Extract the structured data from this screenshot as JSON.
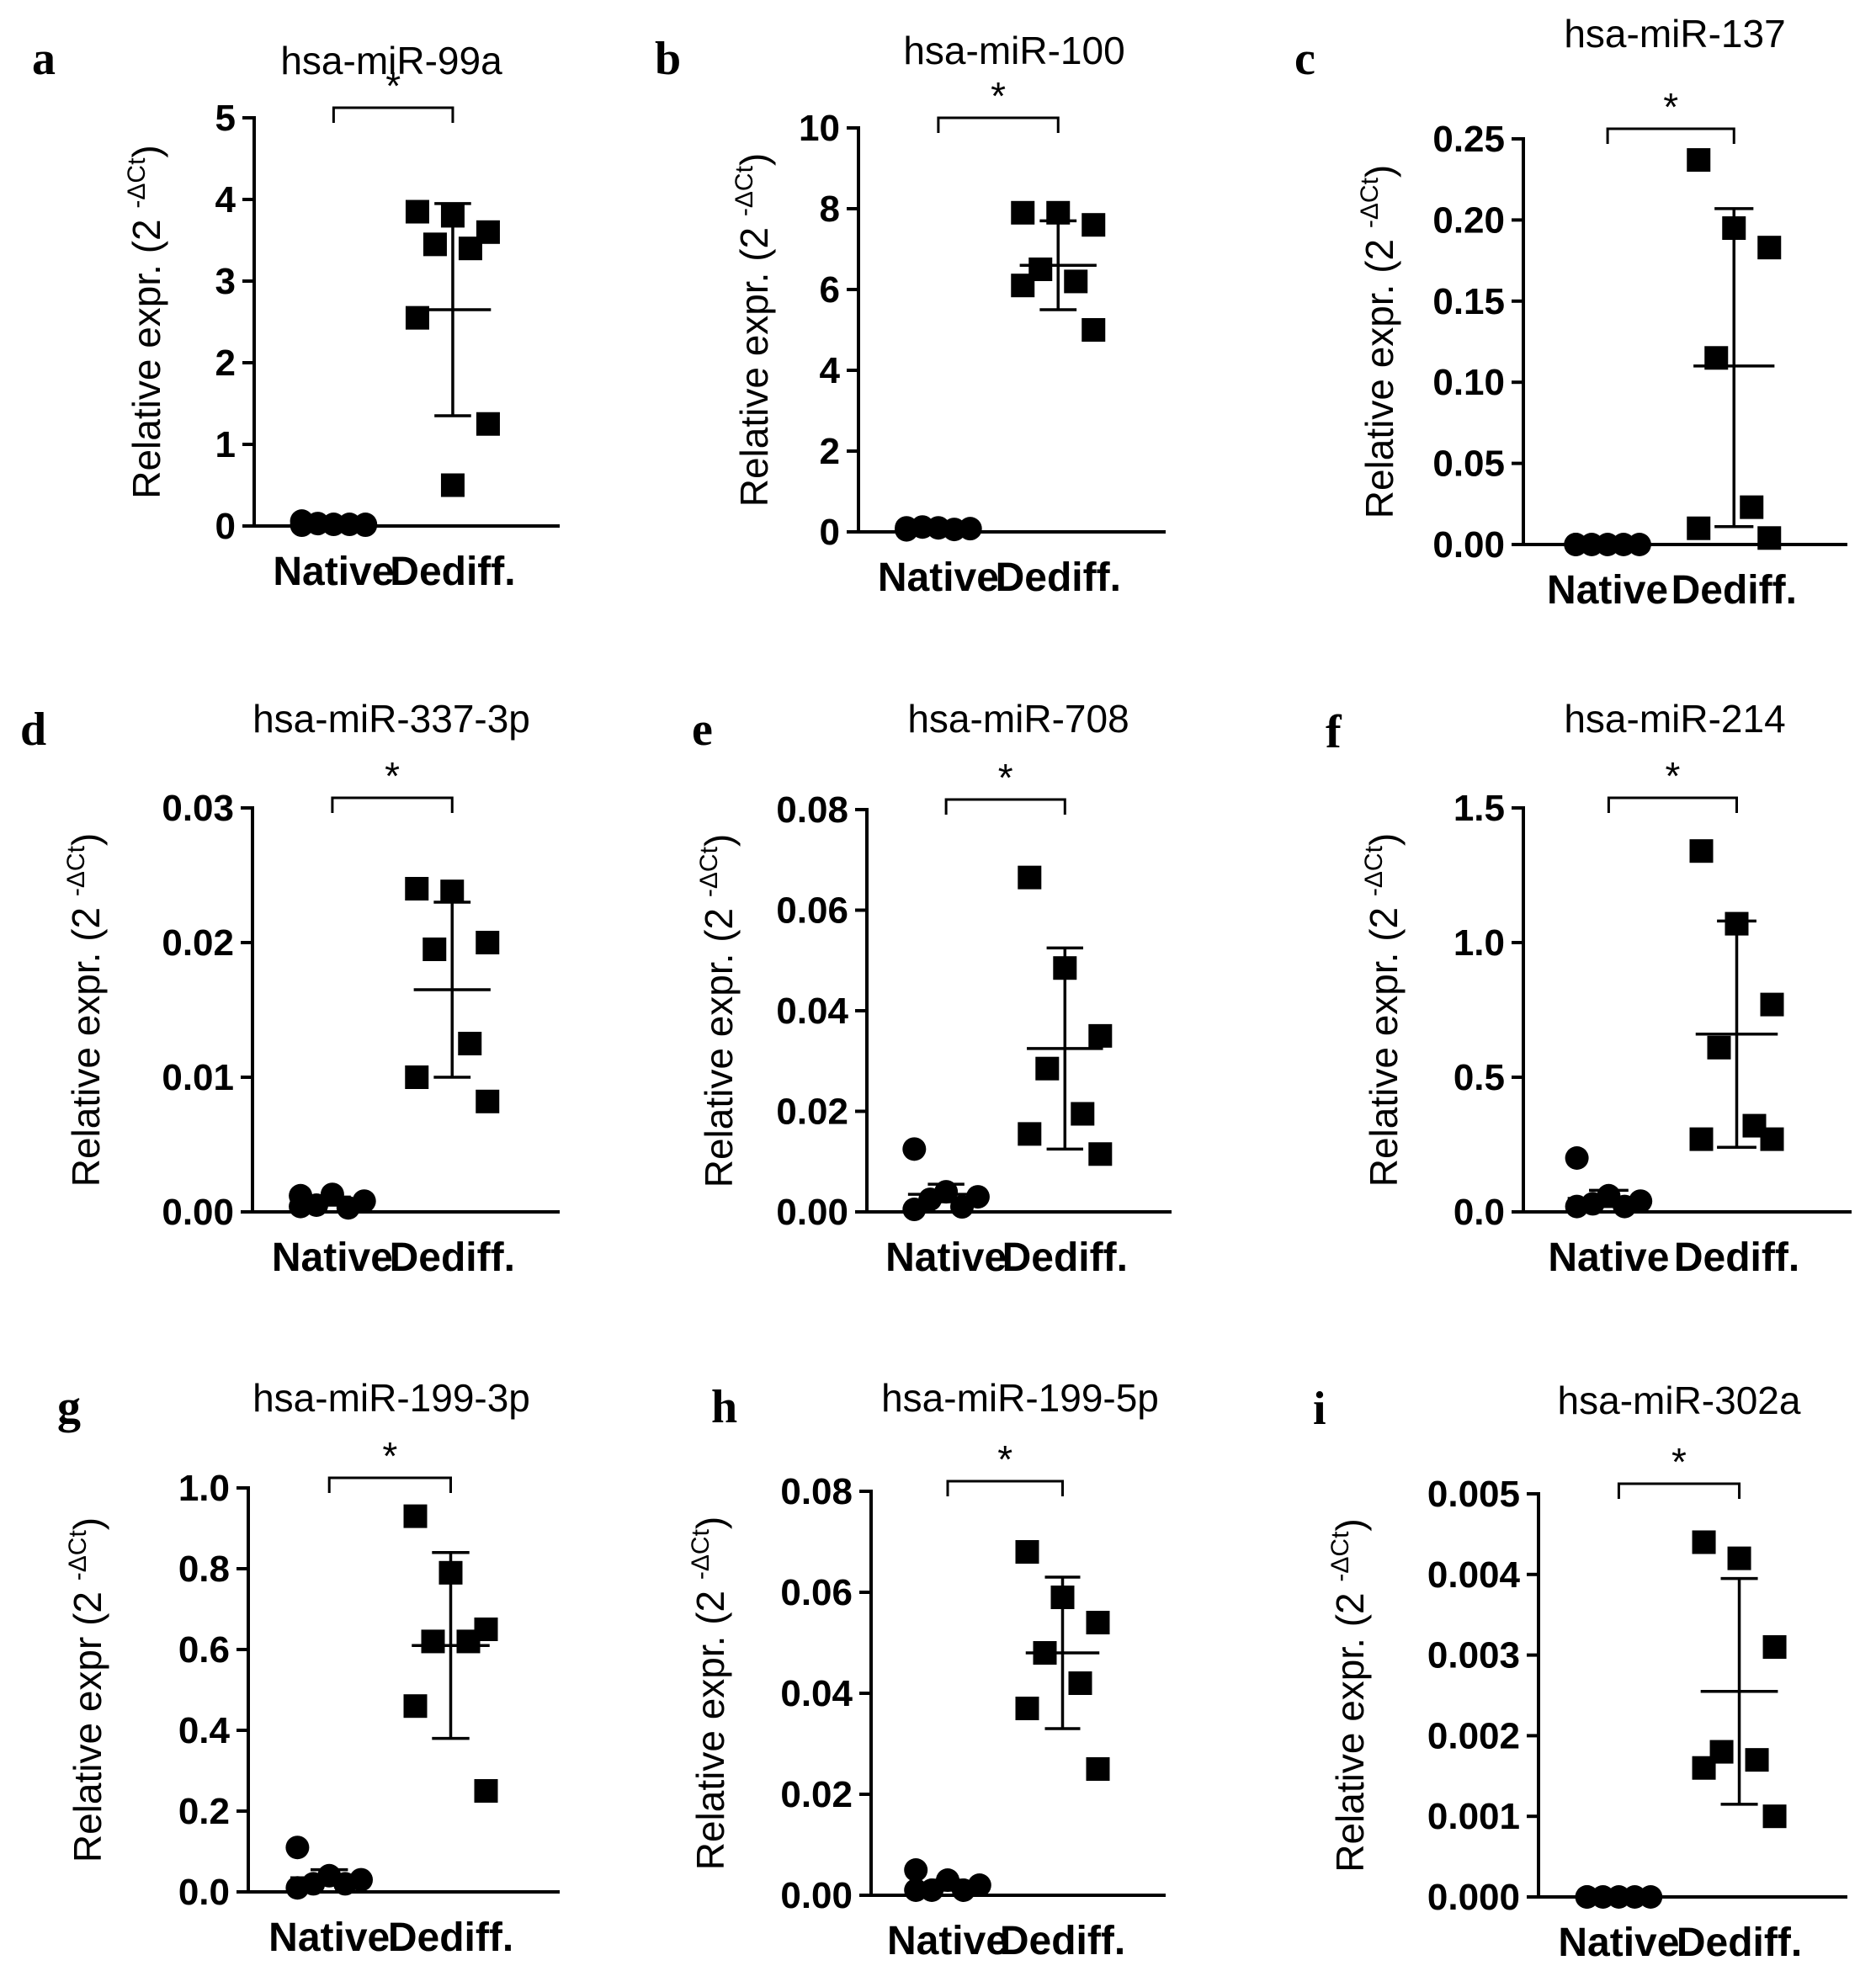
{
  "chart_data": [
    {
      "panel": "a",
      "type": "scatter",
      "title": "hsa-miR-99a",
      "ylabel": "Relative expr. (2",
      "ylabel_sup": "-ΔCt",
      "ylabel_close": ")",
      "ylim": [
        0,
        5
      ],
      "yticks": [
        0,
        1,
        2,
        3,
        4,
        5
      ],
      "ytick_labels": [
        "0",
        "1",
        "2",
        "3",
        "4",
        "5"
      ],
      "categories": [
        "Native",
        "Dediff."
      ],
      "significance": "*",
      "series": [
        {
          "name": "Native",
          "marker": "circle",
          "values": [
            0.01,
            0.02,
            0.02,
            0.03,
            0.02,
            0.06,
            0.01
          ],
          "mean": 0.02,
          "err_low": 0.0,
          "err_high": 0.04
        },
        {
          "name": "Dediff.",
          "marker": "square",
          "values": [
            3.85,
            3.8,
            3.6,
            3.45,
            3.4,
            2.55,
            1.25,
            0.5
          ],
          "mean": 2.65,
          "err_low": 1.35,
          "err_high": 3.95
        }
      ]
    },
    {
      "panel": "b",
      "type": "scatter",
      "title": "hsa-miR-100",
      "ylabel": "Relative expr. (2",
      "ylabel_sup": "-ΔCt",
      "ylabel_close": ")",
      "ylim": [
        0,
        10
      ],
      "yticks": [
        0,
        2,
        4,
        6,
        8,
        10
      ],
      "ytick_labels": [
        "0",
        "2",
        "4",
        "6",
        "8",
        "10"
      ],
      "categories": [
        "Native",
        "Dediff."
      ],
      "significance": "*",
      "series": [
        {
          "name": "Native",
          "marker": "circle",
          "values": [
            0.05,
            0.1,
            0.08,
            0.12,
            0.06,
            0.1
          ],
          "mean": 0.09,
          "err_low": 0.05,
          "err_high": 0.13
        },
        {
          "name": "Dediff.",
          "marker": "square",
          "values": [
            7.9,
            7.9,
            7.6,
            6.5,
            6.2,
            6.1,
            5.0
          ],
          "mean": 6.6,
          "err_low": 5.5,
          "err_high": 7.7
        }
      ]
    },
    {
      "panel": "c",
      "type": "scatter",
      "title": "hsa-miR-137",
      "ylabel": "Relative expr. (2",
      "ylabel_sup": "-ΔCt",
      "ylabel_close": ")",
      "ylim": [
        0,
        0.25
      ],
      "yticks": [
        0,
        0.05,
        0.1,
        0.15,
        0.2,
        0.25
      ],
      "ytick_labels": [
        "0.00",
        "0.05",
        "0.10",
        "0.15",
        "0.20",
        "0.25"
      ],
      "categories": [
        "Native",
        "Dediff."
      ],
      "significance": "*",
      "series": [
        {
          "name": "Native",
          "marker": "circle",
          "values": [
            0.0,
            0.0,
            0.0,
            0.0,
            0.0,
            0.0
          ],
          "mean": 0.0,
          "err_low": 0.0,
          "err_high": 0.001
        },
        {
          "name": "Dediff.",
          "marker": "square",
          "values": [
            0.237,
            0.195,
            0.183,
            0.115,
            0.023,
            0.01,
            0.004
          ],
          "mean": 0.11,
          "err_low": 0.011,
          "err_high": 0.207
        }
      ]
    },
    {
      "panel": "d",
      "type": "scatter",
      "title": "hsa-miR-337-3p",
      "ylabel": "Relative expr. (2",
      "ylabel_sup": "-ΔCt",
      "ylabel_close": ")",
      "ylim": [
        0,
        0.03
      ],
      "yticks": [
        0,
        0.01,
        0.02,
        0.03
      ],
      "ytick_labels": [
        "0.00",
        "0.01",
        "0.02",
        "0.03"
      ],
      "categories": [
        "Native",
        "Dediff."
      ],
      "significance": "*",
      "series": [
        {
          "name": "Native",
          "marker": "circle",
          "values": [
            0.0012,
            0.0013,
            0.0008,
            0.0005,
            0.0003,
            0.0004
          ],
          "mean": 0.0008,
          "err_low": 0.0005,
          "err_high": 0.0011
        },
        {
          "name": "Dediff.",
          "marker": "square",
          "values": [
            0.024,
            0.0238,
            0.02,
            0.0195,
            0.0125,
            0.01,
            0.0082
          ],
          "mean": 0.0165,
          "err_low": 0.01,
          "err_high": 0.023
        }
      ]
    },
    {
      "panel": "e",
      "type": "scatter",
      "title": "hsa-miR-708",
      "ylabel": "Relative expr. (2",
      "ylabel_sup": "-ΔCt",
      "ylabel_close": ")",
      "ylim": [
        0,
        0.08
      ],
      "yticks": [
        0,
        0.02,
        0.04,
        0.06,
        0.08
      ],
      "ytick_labels": [
        "0.00",
        "0.02",
        "0.04",
        "0.06",
        "0.08"
      ],
      "categories": [
        "Native",
        "Dediff."
      ],
      "significance": "*",
      "series": [
        {
          "name": "Native",
          "marker": "circle",
          "values": [
            0.0125,
            0.004,
            0.003,
            0.0025,
            0.001,
            0.0005
          ],
          "mean": 0.0035,
          "err_low": 0.002,
          "err_high": 0.0055
        },
        {
          "name": "Dediff.",
          "marker": "square",
          "values": [
            0.0665,
            0.0485,
            0.035,
            0.0285,
            0.0195,
            0.0155,
            0.0115
          ],
          "mean": 0.0325,
          "err_low": 0.0125,
          "err_high": 0.0525
        }
      ]
    },
    {
      "panel": "f",
      "type": "scatter",
      "title": "hsa-miR-214",
      "ylabel": "Relative expr. (2",
      "ylabel_sup": "-ΔCt",
      "ylabel_close": ")",
      "ylim": [
        0,
        1.5
      ],
      "yticks": [
        0,
        0.5,
        1.0,
        1.5
      ],
      "ytick_labels": [
        "0.0",
        "0.5",
        "1.0",
        "1.5"
      ],
      "categories": [
        "Native",
        "Dediff."
      ],
      "significance": "*",
      "series": [
        {
          "name": "Native",
          "marker": "circle",
          "values": [
            0.2,
            0.06,
            0.04,
            0.03,
            0.02,
            0.02
          ],
          "mean": 0.05,
          "err_low": 0.02,
          "err_high": 0.08
        },
        {
          "name": "Dediff.",
          "marker": "square",
          "values": [
            1.34,
            1.07,
            0.77,
            0.61,
            0.32,
            0.27,
            0.27
          ],
          "mean": 0.66,
          "err_low": 0.24,
          "err_high": 1.08
        }
      ]
    },
    {
      "panel": "g",
      "type": "scatter",
      "title": "hsa-miR-199-3p",
      "ylabel": "Relative expr (2",
      "ylabel_sup": "-ΔCt",
      "ylabel_close": ")",
      "ylim": [
        0,
        1.0
      ],
      "yticks": [
        0,
        0.2,
        0.4,
        0.6,
        0.8,
        1.0
      ],
      "ytick_labels": [
        "0.0",
        "0.2",
        "0.4",
        "0.6",
        "0.8",
        "1.0"
      ],
      "categories": [
        "Native",
        "Dediff."
      ],
      "significance": "*",
      "series": [
        {
          "name": "Native",
          "marker": "circle",
          "values": [
            0.11,
            0.04,
            0.03,
            0.02,
            0.02,
            0.01
          ],
          "mean": 0.035,
          "err_low": 0.02,
          "err_high": 0.055
        },
        {
          "name": "Dediff.",
          "marker": "square",
          "values": [
            0.93,
            0.79,
            0.65,
            0.62,
            0.62,
            0.46,
            0.25
          ],
          "mean": 0.61,
          "err_low": 0.38,
          "err_high": 0.84
        }
      ]
    },
    {
      "panel": "h",
      "type": "scatter",
      "title": "hsa-miR-199-5p",
      "ylabel": "Relative expr. (2",
      "ylabel_sup": "-ΔCt",
      "ylabel_close": ")",
      "ylim": [
        0,
        0.08
      ],
      "yticks": [
        0,
        0.02,
        0.04,
        0.06,
        0.08
      ],
      "ytick_labels": [
        "0.00",
        "0.02",
        "0.04",
        "0.06",
        "0.08"
      ],
      "categories": [
        "Native",
        "Dediff."
      ],
      "significance": "*",
      "series": [
        {
          "name": "Native",
          "marker": "circle",
          "values": [
            0.005,
            0.003,
            0.002,
            0.001,
            0.001,
            0.001
          ],
          "mean": 0.002,
          "err_low": 0.001,
          "err_high": 0.003
        },
        {
          "name": "Dediff.",
          "marker": "square",
          "values": [
            0.068,
            0.059,
            0.054,
            0.048,
            0.042,
            0.037,
            0.025
          ],
          "mean": 0.048,
          "err_low": 0.033,
          "err_high": 0.063
        }
      ]
    },
    {
      "panel": "i",
      "type": "scatter",
      "title": "hsa-miR-302a",
      "ylabel": "Relative expr. (2",
      "ylabel_sup": "-ΔCt",
      "ylabel_close": ")",
      "ylim": [
        0,
        0.005
      ],
      "yticks": [
        0,
        0.001,
        0.002,
        0.003,
        0.004,
        0.005
      ],
      "ytick_labels": [
        "0.000",
        "0.001",
        "0.002",
        "0.003",
        "0.004",
        "0.005"
      ],
      "categories": [
        "Native",
        "Dediff."
      ],
      "significance": "*",
      "series": [
        {
          "name": "Native",
          "marker": "circle",
          "values": [
            0.0,
            0.0,
            0.0,
            0.0,
            0.0,
            0.0
          ],
          "mean": 0.0,
          "err_low": 0.0,
          "err_high": 2e-05
        },
        {
          "name": "Dediff.",
          "marker": "square",
          "values": [
            0.0044,
            0.0042,
            0.0031,
            0.0018,
            0.0017,
            0.0016,
            0.001
          ],
          "mean": 0.00255,
          "err_low": 0.00115,
          "err_high": 0.00395
        }
      ]
    }
  ]
}
